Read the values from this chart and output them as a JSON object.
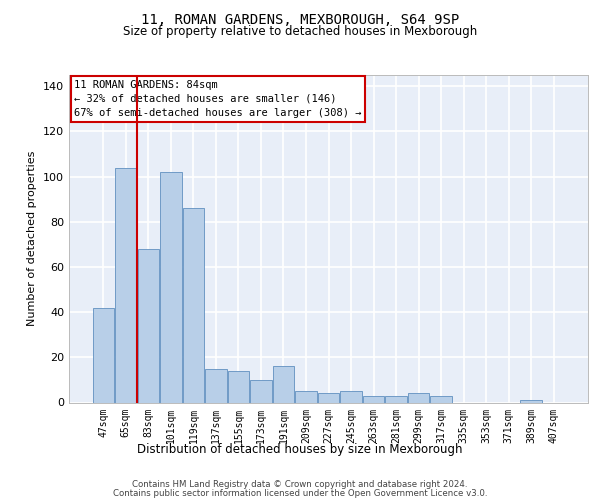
{
  "title1": "11, ROMAN GARDENS, MEXBOROUGH, S64 9SP",
  "title2": "Size of property relative to detached houses in Mexborough",
  "xlabel": "Distribution of detached houses by size in Mexborough",
  "ylabel": "Number of detached properties",
  "categories": [
    "47sqm",
    "65sqm",
    "83sqm",
    "101sqm",
    "119sqm",
    "137sqm",
    "155sqm",
    "173sqm",
    "191sqm",
    "209sqm",
    "227sqm",
    "245sqm",
    "263sqm",
    "281sqm",
    "299sqm",
    "317sqm",
    "335sqm",
    "353sqm",
    "371sqm",
    "389sqm",
    "407sqm"
  ],
  "values": [
    42,
    104,
    68,
    102,
    86,
    15,
    14,
    10,
    16,
    5,
    4,
    5,
    3,
    3,
    4,
    3,
    0,
    0,
    0,
    1,
    0
  ],
  "bar_color": "#b8cfe8",
  "bar_edge_color": "#6090c0",
  "annotation_title": "11 ROMAN GARDENS: 84sqm",
  "annotation_line1": "← 32% of detached houses are smaller (146)",
  "annotation_line2": "67% of semi-detached houses are larger (308) →",
  "annotation_box_facecolor": "#ffffff",
  "annotation_box_edgecolor": "#cc0000",
  "vline_color": "#cc0000",
  "vline_x": 1.5,
  "ylim": [
    0,
    145
  ],
  "yticks": [
    0,
    20,
    40,
    60,
    80,
    100,
    120,
    140
  ],
  "footer1": "Contains HM Land Registry data © Crown copyright and database right 2024.",
  "footer2": "Contains public sector information licensed under the Open Government Licence v3.0.",
  "plot_bg_color": "#e8eef8"
}
